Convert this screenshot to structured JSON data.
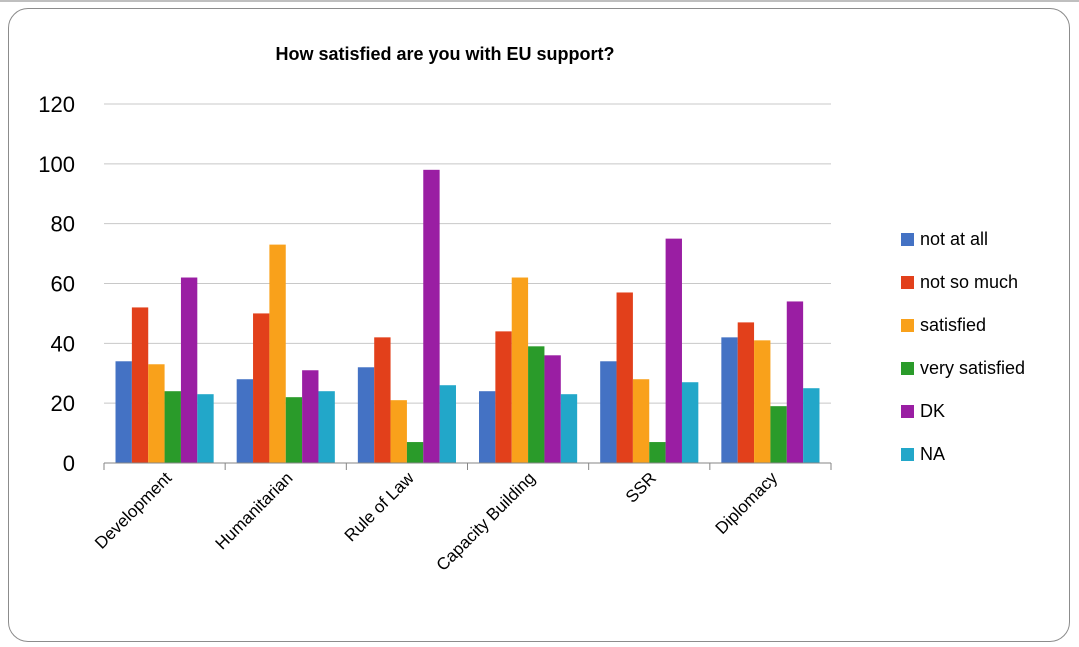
{
  "chart_data": {
    "type": "bar",
    "title": "How satisfied are you with EU support?",
    "xlabel": "",
    "ylabel": "",
    "categories": [
      "Development",
      "Humanitarian",
      "Rule of Law",
      "Capacity Building",
      "SSR",
      "Diplomacy"
    ],
    "series": [
      {
        "name": "not at all",
        "color": "#4472c4",
        "values": [
          34,
          28,
          32,
          24,
          34,
          42
        ]
      },
      {
        "name": "not so much",
        "color": "#e2401b",
        "values": [
          52,
          50,
          42,
          44,
          57,
          47
        ]
      },
      {
        "name": "satisfied",
        "color": "#f9a11b",
        "values": [
          33,
          73,
          21,
          62,
          28,
          41
        ]
      },
      {
        "name": "very satisfied",
        "color": "#2a9b2a",
        "values": [
          24,
          22,
          7,
          39,
          7,
          19
        ]
      },
      {
        "name": "DK",
        "color": "#9a1ea3",
        "values": [
          62,
          31,
          98,
          36,
          75,
          54
        ]
      },
      {
        "name": "NA",
        "color": "#22a7c9",
        "values": [
          23,
          24,
          26,
          23,
          27,
          25
        ]
      }
    ],
    "ylim": [
      0,
      120
    ],
    "yticks": [
      "0",
      "20",
      "40",
      "60",
      "80",
      "100",
      "120"
    ],
    "grid": true,
    "legend_position": "right"
  }
}
